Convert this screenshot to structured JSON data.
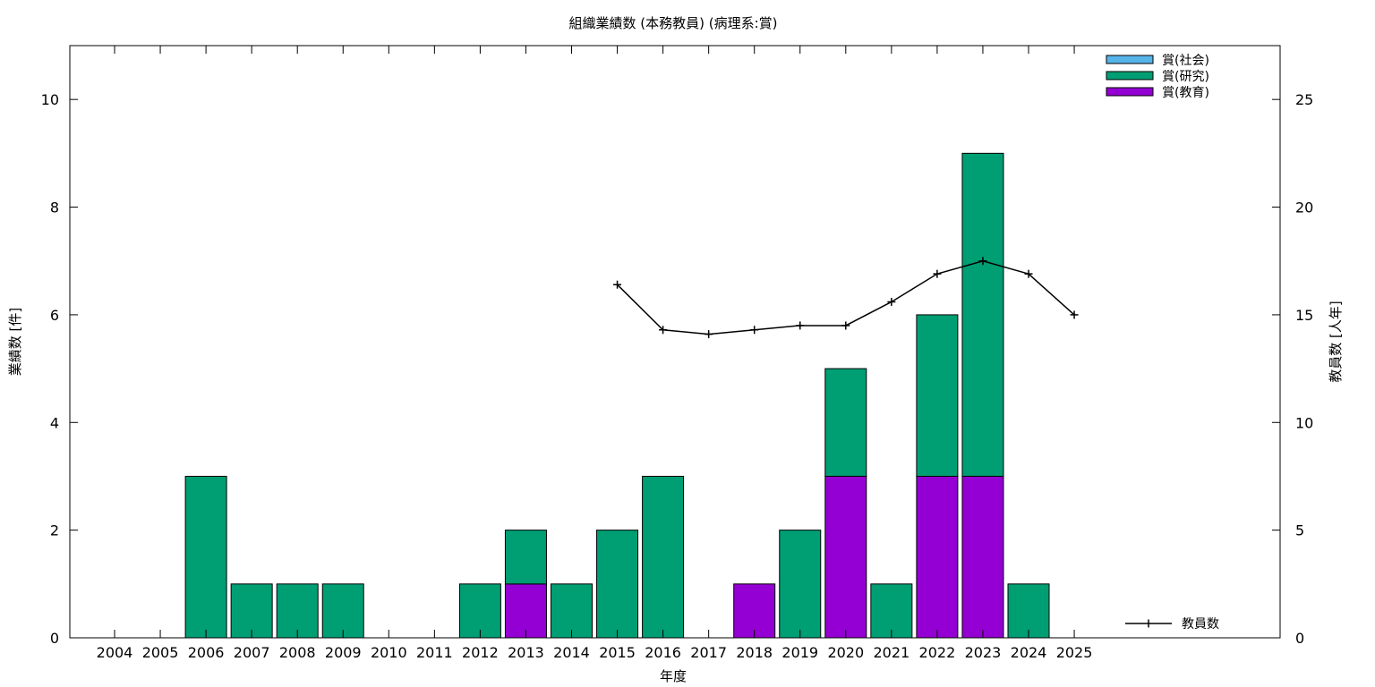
{
  "chart_data": {
    "type": "bar",
    "title": "組織業績数 (本務教員) (病理系:賞)",
    "xlabel": "年度",
    "ylabel": "業績数 [件]",
    "y2label": "教員数 [人年]",
    "ylim": [
      0,
      11
    ],
    "y2lim": [
      0,
      27.5
    ],
    "yticks": [
      0,
      2,
      4,
      6,
      8,
      10
    ],
    "y2ticks": [
      0,
      5,
      10,
      15,
      20,
      25
    ],
    "categories": [
      "2004",
      "2005",
      "2006",
      "2007",
      "2008",
      "2009",
      "2010",
      "2011",
      "2012",
      "2013",
      "2014",
      "2015",
      "2016",
      "2017",
      "2018",
      "2019",
      "2020",
      "2021",
      "2022",
      "2023",
      "2024",
      "2025"
    ],
    "stacked": true,
    "series": [
      {
        "name": "賞(教育)",
        "color": "#9400d3",
        "values": [
          0,
          0,
          0,
          0,
          0,
          0,
          0,
          0,
          0,
          1,
          0,
          0,
          0,
          0,
          1,
          0,
          3,
          0,
          3,
          3,
          0,
          0
        ]
      },
      {
        "name": "賞(研究)",
        "color": "#009e73",
        "values": [
          0,
          0,
          3,
          1,
          1,
          1,
          0,
          0,
          1,
          1,
          1,
          2,
          3,
          0,
          0,
          2,
          2,
          1,
          3,
          6,
          1,
          0
        ]
      },
      {
        "name": "賞(社会)",
        "color": "#56b4e9",
        "values": [
          0,
          0,
          0,
          0,
          0,
          0,
          0,
          0,
          0,
          0,
          0,
          0,
          0,
          0,
          0,
          0,
          0,
          0,
          0,
          0,
          0,
          0
        ]
      }
    ],
    "line_series": {
      "name": "教員数",
      "color": "#000000",
      "axis": "y2",
      "x": [
        "2015",
        "2016",
        "2017",
        "2018",
        "2019",
        "2020",
        "2021",
        "2022",
        "2023",
        "2024",
        "2025"
      ],
      "values": [
        16.4,
        14.3,
        14.1,
        14.3,
        14.5,
        14.5,
        15.6,
        16.9,
        17.5,
        16.9,
        15.0
      ]
    },
    "legend_bars": [
      {
        "label": "賞(社会)",
        "color": "#56b4e9"
      },
      {
        "label": "賞(研究)",
        "color": "#009e73"
      },
      {
        "label": "賞(教育)",
        "color": "#9400d3"
      }
    ],
    "legend_line_label": "教員数",
    "legend_placement": "top-right",
    "grid": false
  }
}
